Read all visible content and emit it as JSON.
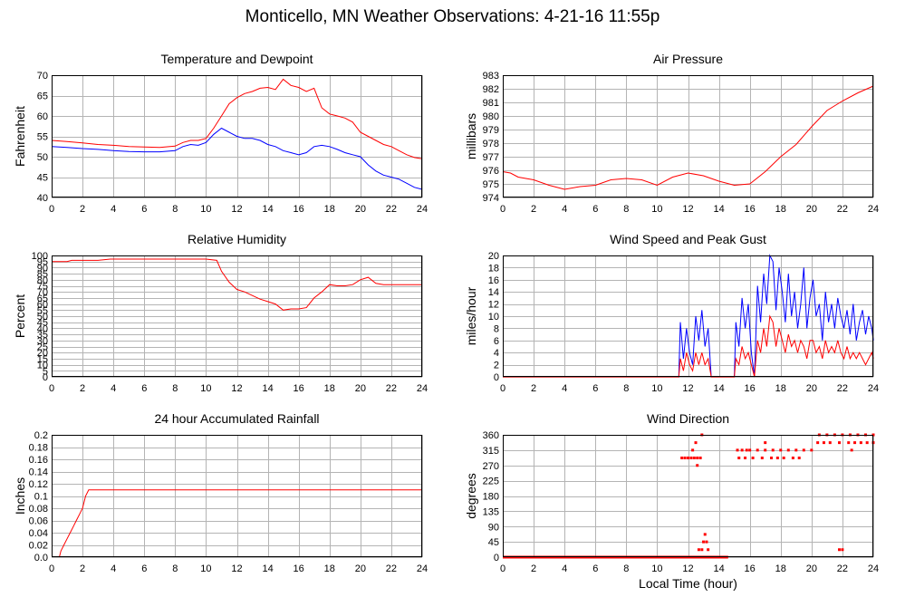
{
  "page": {
    "title": "Monticello, MN Weather Observations: 4-21-16 11:55p"
  },
  "colors": {
    "red": "#ff0000",
    "blue": "#0000ff",
    "grid": "#b4b4b4",
    "frame": "#000000"
  },
  "chart_data": [
    {
      "id": "temp",
      "type": "line",
      "title": "Temperature and Dewpoint",
      "xlabel": "",
      "ylabel": "Fahrenheit",
      "xlim": [
        0,
        24
      ],
      "ylim": [
        40,
        70
      ],
      "xticks": [
        0,
        2,
        4,
        6,
        8,
        10,
        12,
        14,
        16,
        18,
        20,
        22,
        24
      ],
      "yticks": [
        40,
        45,
        50,
        55,
        60,
        65,
        70
      ],
      "grid": true,
      "series": [
        {
          "color": "red",
          "x": [
            0,
            1,
            2,
            3,
            4,
            5,
            6,
            7,
            8,
            8.5,
            9,
            9.5,
            10,
            10.5,
            11,
            11.5,
            12,
            12.5,
            13,
            13.5,
            14,
            14.5,
            15,
            15.5,
            16,
            16.5,
            17,
            17.5,
            18,
            18.5,
            19,
            19.5,
            20,
            20.5,
            21,
            21.5,
            22,
            22.5,
            23,
            23.5,
            24
          ],
          "y": [
            54,
            53.7,
            53.4,
            53,
            52.8,
            52.5,
            52.4,
            52.3,
            52.6,
            53.5,
            54,
            54,
            54.5,
            57,
            60,
            63,
            64.5,
            65.5,
            66,
            66.8,
            67,
            66.5,
            69,
            67.5,
            67,
            66,
            66.8,
            62,
            60.5,
            60,
            59.5,
            58.5,
            56,
            55,
            54,
            53,
            52.5,
            51.5,
            50.5,
            49.8,
            49.5
          ]
        },
        {
          "color": "blue",
          "x": [
            0,
            1,
            2,
            3,
            4,
            5,
            6,
            7,
            8,
            8.5,
            9,
            9.5,
            10,
            10.5,
            11,
            11.5,
            12,
            12.5,
            13,
            13.5,
            14,
            14.5,
            15,
            15.5,
            16,
            16.5,
            17,
            17.5,
            18,
            18.5,
            19,
            19.5,
            20,
            20.5,
            21,
            21.5,
            22,
            22.5,
            23,
            23.5,
            24
          ],
          "y": [
            52.5,
            52.3,
            52,
            51.8,
            51.5,
            51.3,
            51.2,
            51.2,
            51.5,
            52.5,
            53,
            52.8,
            53.5,
            55.5,
            57,
            56,
            55,
            54.5,
            54.5,
            54,
            53,
            52.5,
            51.5,
            51,
            50.5,
            51,
            52.5,
            52.8,
            52.5,
            51.8,
            51,
            50.5,
            50,
            48,
            46.5,
            45.5,
            45,
            44.5,
            43.5,
            42.5,
            42
          ]
        }
      ]
    },
    {
      "id": "pressure",
      "type": "line",
      "title": "Air Pressure",
      "xlabel": "",
      "ylabel": "millibars",
      "xlim": [
        0,
        24
      ],
      "ylim": [
        974,
        983
      ],
      "xticks": [
        0,
        2,
        4,
        6,
        8,
        10,
        12,
        14,
        16,
        18,
        20,
        22,
        24
      ],
      "yticks": [
        974,
        975,
        976,
        977,
        978,
        979,
        980,
        981,
        982,
        983
      ],
      "grid": true,
      "series": [
        {
          "color": "red",
          "x": [
            0,
            0.5,
            1,
            2,
            3,
            4,
            5,
            6,
            7,
            8,
            9,
            10,
            11,
            12,
            13,
            14,
            15,
            16,
            17,
            18,
            19,
            20,
            21,
            22,
            23,
            24
          ],
          "y": [
            975.9,
            975.8,
            975.5,
            975.3,
            974.9,
            974.6,
            974.8,
            974.9,
            975.3,
            975.4,
            975.3,
            974.9,
            975.5,
            975.8,
            975.6,
            975.2,
            974.9,
            975.0,
            975.9,
            977.0,
            977.9,
            979.2,
            980.4,
            981.1,
            981.7,
            982.2
          ]
        }
      ]
    },
    {
      "id": "humidity",
      "type": "line",
      "title": "Relative Humidity",
      "xlabel": "",
      "ylabel": "Percent",
      "xlim": [
        0,
        24
      ],
      "ylim": [
        0,
        100
      ],
      "xticks": [
        0,
        2,
        4,
        6,
        8,
        10,
        12,
        14,
        16,
        18,
        20,
        22,
        24
      ],
      "yticks": [
        0,
        5,
        10,
        15,
        20,
        25,
        30,
        35,
        40,
        45,
        50,
        55,
        60,
        65,
        70,
        75,
        80,
        85,
        90,
        95,
        100
      ],
      "grid": true,
      "series": [
        {
          "color": "red",
          "x": [
            0,
            1,
            1.3,
            2,
            3,
            3.8,
            4,
            5,
            6,
            7,
            8,
            9,
            10,
            10.7,
            11,
            11.5,
            12,
            12.5,
            13,
            13.5,
            14,
            14.5,
            15,
            15.5,
            16,
            16.5,
            17,
            17.5,
            18,
            18.5,
            19,
            19.5,
            20,
            20.5,
            21,
            21.5,
            22,
            22.5,
            23,
            24
          ],
          "y": [
            95,
            95,
            96,
            96,
            96,
            97,
            97,
            97,
            97,
            97,
            97,
            97,
            97,
            96,
            87,
            78,
            72,
            70,
            67,
            64,
            62,
            60,
            55,
            56,
            56,
            57,
            65,
            70,
            76,
            75,
            75,
            76,
            80,
            82,
            77,
            76,
            76,
            76,
            76,
            76
          ]
        }
      ]
    },
    {
      "id": "wind",
      "type": "line",
      "title": "Wind Speed and Peak Gust",
      "xlabel": "",
      "ylabel": "miles/hour",
      "xlim": [
        0,
        24
      ],
      "ylim": [
        0,
        20
      ],
      "xticks": [
        0,
        2,
        4,
        6,
        8,
        10,
        12,
        14,
        16,
        18,
        20,
        22,
        24
      ],
      "yticks": [
        0,
        2,
        4,
        6,
        8,
        10,
        12,
        14,
        16,
        18,
        20
      ],
      "grid": true,
      "series": [
        {
          "color": "blue",
          "x": [
            0,
            11.4,
            11.5,
            11.7,
            11.9,
            12.1,
            12.3,
            12.5,
            12.7,
            12.9,
            13.1,
            13.3,
            13.5,
            15,
            15.1,
            15.3,
            15.5,
            15.7,
            15.9,
            16.1,
            16.3,
            16.5,
            16.7,
            16.9,
            17.1,
            17.3,
            17.5,
            17.7,
            17.9,
            18.1,
            18.3,
            18.5,
            18.7,
            18.9,
            19.1,
            19.3,
            19.5,
            19.7,
            19.9,
            20.1,
            20.3,
            20.5,
            20.7,
            20.9,
            21.1,
            21.3,
            21.5,
            21.7,
            21.9,
            22.1,
            22.3,
            22.5,
            22.7,
            22.9,
            23.1,
            23.3,
            23.5,
            23.7,
            23.9,
            24
          ],
          "y": [
            0,
            0,
            9,
            3,
            8,
            4,
            2,
            10,
            6,
            11,
            5,
            8,
            0,
            0,
            9,
            5,
            13,
            8,
            12,
            4,
            0,
            15,
            9,
            17,
            12,
            20,
            19,
            11,
            18,
            14,
            9,
            17,
            10,
            14,
            8,
            12,
            18,
            8,
            13,
            16,
            10,
            12,
            6,
            14,
            9,
            12,
            8,
            13,
            10,
            8,
            11,
            7,
            12,
            6,
            9,
            11,
            7,
            10,
            8,
            6
          ]
        },
        {
          "color": "red",
          "x": [
            0,
            11.4,
            11.5,
            11.7,
            11.9,
            12.1,
            12.3,
            12.5,
            12.7,
            12.9,
            13.1,
            13.3,
            13.5,
            15,
            15.1,
            15.3,
            15.5,
            15.7,
            15.9,
            16.1,
            16.3,
            16.5,
            16.7,
            16.9,
            17.1,
            17.3,
            17.5,
            17.7,
            17.9,
            18.1,
            18.3,
            18.5,
            18.7,
            18.9,
            19.1,
            19.3,
            19.5,
            19.7,
            19.9,
            20.1,
            20.3,
            20.5,
            20.7,
            20.9,
            21.1,
            21.3,
            21.5,
            21.7,
            21.9,
            22.1,
            22.3,
            22.5,
            22.7,
            22.9,
            23.1,
            23.3,
            23.5,
            23.7,
            23.9,
            24
          ],
          "y": [
            0,
            0,
            3,
            1,
            4,
            2,
            1,
            4,
            2,
            4,
            2,
            3,
            0,
            0,
            3,
            2,
            5,
            3,
            4,
            2,
            0,
            6,
            4,
            8,
            5,
            10,
            9,
            5,
            8,
            6,
            4,
            7,
            5,
            6,
            4,
            6,
            5,
            3,
            6,
            6,
            4,
            5,
            3,
            6,
            4,
            5,
            4,
            6,
            4,
            3,
            5,
            3,
            4,
            3,
            4,
            3,
            2,
            3,
            4,
            3
          ]
        }
      ]
    },
    {
      "id": "rain",
      "type": "line",
      "title": "24 hour Accumulated Rainfall",
      "xlabel": "",
      "ylabel": "Inches",
      "xlim": [
        0,
        24
      ],
      "ylim": [
        0,
        0.2
      ],
      "xticks": [
        0,
        2,
        4,
        6,
        8,
        10,
        12,
        14,
        16,
        18,
        20,
        22,
        24
      ],
      "yticks": [
        0.0,
        0.02,
        0.04,
        0.06,
        0.08,
        0.1,
        0.12,
        0.14,
        0.16,
        0.18,
        0.2
      ],
      "ytick_labels": [
        "0.0",
        "0.02",
        "0.04",
        "0.06",
        "0.08",
        "0.1",
        "0.12",
        "0.14",
        "0.16",
        "0.18",
        "0.2"
      ],
      "grid": true,
      "series": [
        {
          "color": "red",
          "x": [
            0.5,
            0.6,
            0.8,
            1.0,
            1.2,
            1.4,
            1.6,
            1.8,
            2.0,
            2.2,
            2.4,
            24
          ],
          "y": [
            0.0,
            0.01,
            0.02,
            0.03,
            0.04,
            0.05,
            0.06,
            0.07,
            0.08,
            0.1,
            0.11,
            0.11
          ]
        }
      ]
    },
    {
      "id": "direction",
      "type": "scatter",
      "title": "Wind Direction",
      "xlabel": "Local Time (hour)",
      "ylabel": "degrees",
      "xlim": [
        0,
        24
      ],
      "ylim": [
        0,
        360
      ],
      "xticks": [
        0,
        2,
        4,
        6,
        8,
        10,
        12,
        14,
        16,
        18,
        20,
        22,
        24
      ],
      "yticks": [
        0,
        45,
        90,
        135,
        180,
        225,
        270,
        315,
        360
      ],
      "grid": true,
      "series": [
        {
          "color": "red",
          "x": [
            11.6,
            11.8,
            12.0,
            12.2,
            12.4,
            12.6,
            12.8,
            12.3,
            12.5,
            12.9,
            13.0,
            13.1,
            13.2,
            13.3,
            12.7,
            12.9,
            15.2,
            15.5,
            15.8,
            16.0,
            16.5,
            17.0,
            17.5,
            18.0,
            18.5,
            19.0,
            19.5,
            20.0,
            15.3,
            15.7,
            16.2,
            16.8,
            17.4,
            17.8,
            18.2,
            18.8,
            19.2,
            17.0,
            20.5,
            21.0,
            21.5,
            22.0,
            22.5,
            23.0,
            23.5,
            24.0,
            20.4,
            20.8,
            21.2,
            21.8,
            22.4,
            22.8,
            23.2,
            23.6,
            24.0,
            22.6,
            12.4,
            13.0,
            21.8,
            22.0,
            12.6
          ],
          "y": [
            292,
            292,
            292,
            292,
            292,
            292,
            292,
            315,
            337,
            360,
            45,
            67,
            45,
            22,
            22,
            22,
            315,
            315,
            315,
            315,
            315,
            315,
            315,
            315,
            315,
            315,
            315,
            315,
            292,
            292,
            292,
            292,
            292,
            292,
            292,
            292,
            292,
            337,
            360,
            360,
            360,
            360,
            360,
            360,
            360,
            360,
            337,
            337,
            337,
            337,
            337,
            337,
            337,
            337,
            337,
            315,
            0,
            0,
            22,
            22,
            270
          ],
          "baseline": {
            "x0": 0,
            "x1": 14.6,
            "y": 0
          }
        }
      ]
    }
  ]
}
